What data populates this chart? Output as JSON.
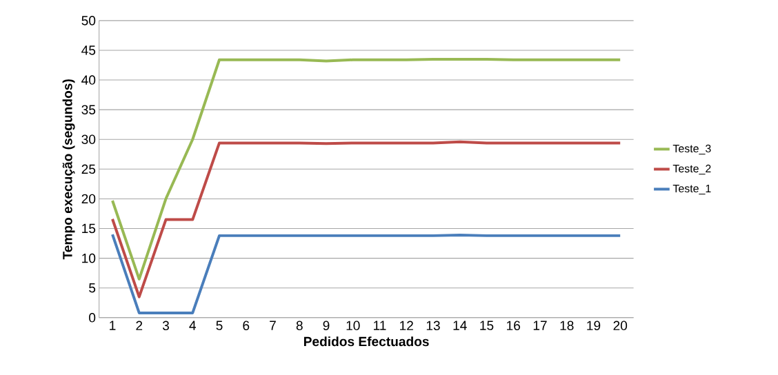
{
  "chart_data": {
    "type": "line",
    "xlabel": "Pedidos Efectuados",
    "ylabel": "Tempo execução (segundos)",
    "categories": [
      "1",
      "2",
      "3",
      "4",
      "5",
      "6",
      "7",
      "8",
      "9",
      "10",
      "11",
      "12",
      "13",
      "14",
      "15",
      "16",
      "17",
      "18",
      "19",
      "20"
    ],
    "series": [
      {
        "name": "Teste_1",
        "color": "#4a7ebb",
        "values": [
          14,
          0.8,
          0.8,
          0.8,
          13.8,
          13.8,
          13.8,
          13.8,
          13.8,
          13.8,
          13.8,
          13.8,
          13.8,
          13.9,
          13.8,
          13.8,
          13.8,
          13.8,
          13.8,
          13.8
        ]
      },
      {
        "name": "Teste_2",
        "color": "#be4b48",
        "values": [
          16.6,
          3.5,
          16.5,
          16.5,
          29.4,
          29.4,
          29.4,
          29.4,
          29.3,
          29.4,
          29.4,
          29.4,
          29.4,
          29.6,
          29.4,
          29.4,
          29.4,
          29.4,
          29.4,
          29.4
        ]
      },
      {
        "name": "Teste_3",
        "color": "#98b954",
        "values": [
          19.7,
          6.5,
          20,
          30,
          43.4,
          43.4,
          43.4,
          43.4,
          43.2,
          43.4,
          43.4,
          43.4,
          43.5,
          43.5,
          43.5,
          43.4,
          43.4,
          43.4,
          43.4,
          43.4
        ]
      }
    ],
    "ylim": [
      0,
      50
    ],
    "yticks": [
      0,
      5,
      10,
      15,
      20,
      25,
      30,
      35,
      40,
      45,
      50
    ],
    "grid": "y",
    "legend": "right",
    "marker": "none",
    "line_style": "solid"
  }
}
